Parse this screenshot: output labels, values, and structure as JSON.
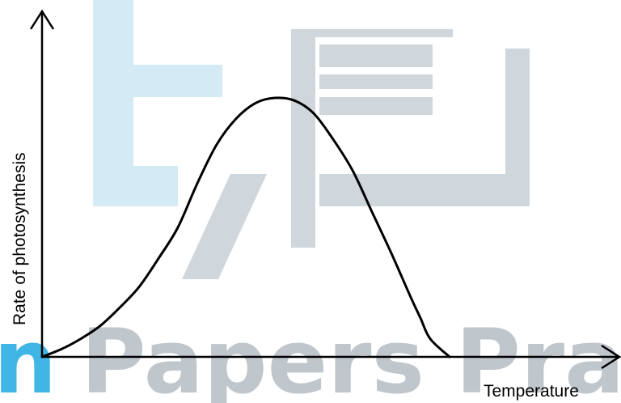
{
  "chart_data": {
    "type": "line",
    "title": "",
    "xlabel": "Temperature",
    "ylabel": "Rate of photosynthesis",
    "xlim": [
      0,
      100
    ],
    "ylim": [
      0,
      100
    ],
    "grid": false,
    "legend": "none",
    "ticks": false,
    "series": [
      {
        "x": [
          0,
          4,
          8,
          12,
          16,
          20,
          24,
          28,
          32,
          36,
          40,
          44,
          48,
          52,
          56,
          60,
          64,
          68,
          72,
          76,
          78,
          80,
          84,
          88,
          90
        ],
        "y": [
          0,
          3,
          7,
          12,
          19,
          27,
          38,
          50,
          67,
          82,
          92,
          98,
          100,
          99,
          94,
          84,
          72,
          56,
          40,
          23,
          15,
          7,
          0,
          0,
          0
        ]
      }
    ],
    "colors": {
      "line": "#000000",
      "axes": "#000000"
    }
  },
  "watermark": {
    "text": "n Papers Prac",
    "colors": {
      "light": "#d4ebf6",
      "cyan": "#3fb6e6",
      "gray": "#cfd6dc",
      "gray_text": "#bfc6cc"
    }
  }
}
